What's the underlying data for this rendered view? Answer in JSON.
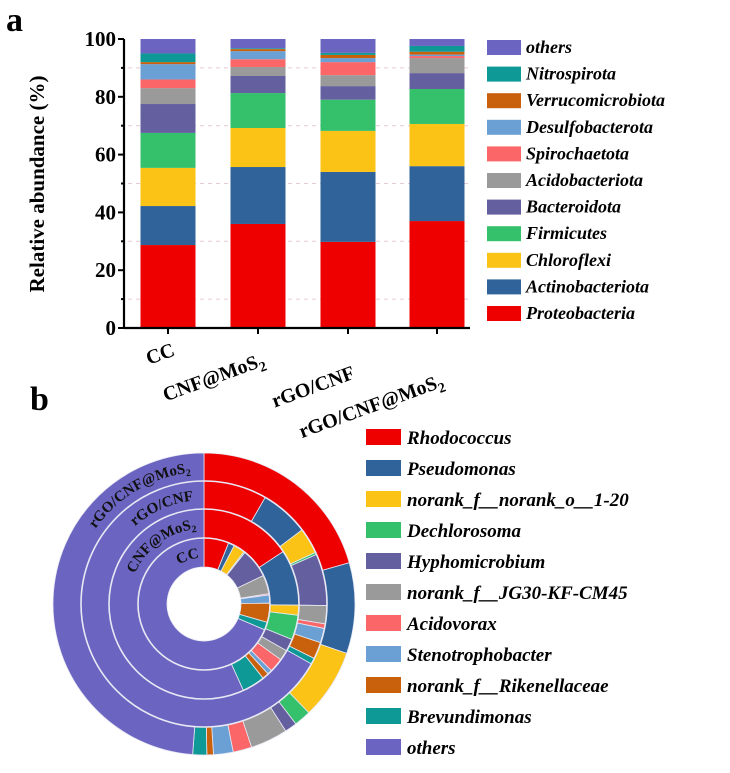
{
  "panels": {
    "a": "a",
    "b": "b"
  },
  "chart_data": [
    {
      "type": "bar",
      "stacked": true,
      "title": "",
      "xlabel": "",
      "ylabel": "Relative abundance (%)",
      "ylim": [
        0,
        100
      ],
      "yticks": [
        0,
        20,
        40,
        60,
        80,
        100
      ],
      "grid": "dashed horizontal at 10, 30, 50, 70, 90",
      "legend_position": "right",
      "categories": [
        "CC",
        "CNF@MoS2",
        "rGO/CNF",
        "rGO/CNF@MoS2"
      ],
      "category_labels": [
        {
          "main": "CC",
          "sub": ""
        },
        {
          "main": "CNF@MoS",
          "sub": "2"
        },
        {
          "main": "rGO/CNF",
          "sub": ""
        },
        {
          "main": "rGO/CNF@MoS",
          "sub": "2"
        }
      ],
      "series": [
        {
          "name": "Proteobacteria",
          "color": "#ee0000",
          "values": [
            28.7,
            36.0,
            29.8,
            37.0
          ]
        },
        {
          "name": "Actinobacteriota",
          "color": "#2f6399",
          "values": [
            13.5,
            19.7,
            24.2,
            19.0
          ]
        },
        {
          "name": "Chloroflexi",
          "color": "#fbc316",
          "values": [
            13.2,
            13.5,
            14.2,
            14.6
          ]
        },
        {
          "name": "Firmicutes",
          "color": "#35c06c",
          "values": [
            12.1,
            12.1,
            10.8,
            12.1
          ]
        },
        {
          "name": "Bacteroidota",
          "color": "#64609f",
          "values": [
            10.0,
            5.9,
            4.7,
            5.5
          ]
        },
        {
          "name": "Acidobacteriota",
          "color": "#9a9a9a",
          "values": [
            5.5,
            3.1,
            3.8,
            5.2
          ]
        },
        {
          "name": "Spirochaetota",
          "color": "#fb6668",
          "values": [
            3.0,
            2.7,
            4.5,
            0.7
          ]
        },
        {
          "name": "Desulfobacterota",
          "color": "#6aa0d4",
          "values": [
            5.3,
            2.8,
            1.4,
            0.5
          ]
        },
        {
          "name": "Verrucomicrobiota",
          "color": "#c9600b",
          "values": [
            0.7,
            0.7,
            1.1,
            1.0
          ]
        },
        {
          "name": "Nitrospirota",
          "color": "#0e9996",
          "values": [
            3.0,
            0.3,
            0.7,
            2.0
          ]
        },
        {
          "name": "others",
          "color": "#6b64c0",
          "values": [
            5.0,
            3.2,
            4.8,
            2.4
          ]
        }
      ]
    },
    {
      "type": "sunburst",
      "title": "",
      "rings_inner_to_outer": [
        "CC",
        "CNF@MoS2",
        "rGO/CNF",
        "rGO/CNF@MoS2"
      ],
      "ring_labels": [
        {
          "main": "CC",
          "sub": ""
        },
        {
          "main": "CNF@MoS",
          "sub": "2"
        },
        {
          "main": "rGO/CNF",
          "sub": ""
        },
        {
          "main": "rGO/CNF@MoS",
          "sub": "2"
        }
      ],
      "start": "12 o'clock, clockwise",
      "legend_position": "right",
      "genera": [
        {
          "name": "Rhodococcus",
          "color": "#ee0000",
          "values": [
            6.1,
            15.7,
            8.3,
            20.6
          ]
        },
        {
          "name": "Pseudomonas",
          "color": "#2f6399",
          "values": [
            1.5,
            9.5,
            6.4,
            9.7
          ]
        },
        {
          "name": "norank_f__norank_o__1-20",
          "color": "#fbc316",
          "values": [
            2.8,
            1.7,
            3.4,
            7.5
          ]
        },
        {
          "name": "Dechlorosoma",
          "color": "#35c06c",
          "values": [
            0.3,
            4.2,
            0.3,
            1.8
          ]
        },
        {
          "name": "Hyphomicrobium",
          "color": "#64609f",
          "values": [
            7.2,
            2.1,
            6.8,
            1.3
          ]
        },
        {
          "name": "norank_f__JG30-KF-CM45",
          "color": "#9a9a9a",
          "values": [
            4.6,
            1.8,
            2.4,
            4.0
          ]
        },
        {
          "name": "Acidovorax",
          "color": "#fb6668",
          "values": [
            0.3,
            2.4,
            0.6,
            2.0
          ]
        },
        {
          "name": "Stenotrophobacter",
          "color": "#6aa0d4",
          "values": [
            2.0,
            0.8,
            1.9,
            2.1
          ]
        },
        {
          "name": "norank_f__Rikenellaceae",
          "color": "#c9600b",
          "values": [
            4.7,
            1.1,
            2.2,
            0.7
          ]
        },
        {
          "name": "Brevundimonas",
          "color": "#0e9996",
          "values": [
            1.9,
            3.9,
            0.8,
            1.5
          ]
        },
        {
          "name": "others",
          "color": "#6b64c0",
          "values": [
            68.6,
            56.8,
            66.9,
            48.8
          ]
        }
      ]
    }
  ]
}
